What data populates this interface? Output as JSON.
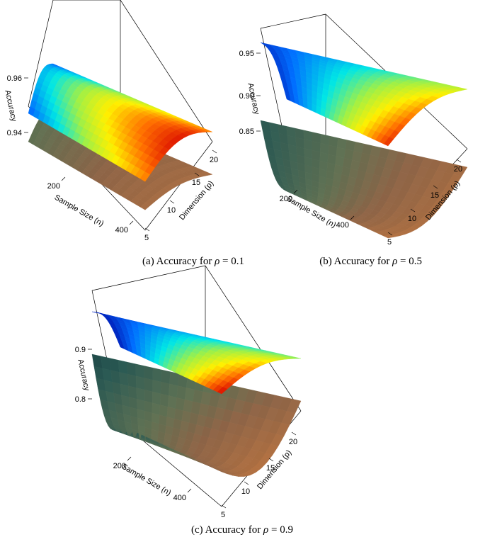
{
  "chart_data": [
    {
      "type": "surface",
      "caption": "(a) Accuracy for ρ = 0.1",
      "caption_parts": {
        "prefix": "(a) Accuracy for ",
        "symbol": "ρ",
        "suffix": " = 0.1"
      },
      "xlabel": "Sample Size (n)",
      "ylabel": "Dimension (p)",
      "zlabel": "Accuracy",
      "x_ticks": [
        "200",
        "400"
      ],
      "y_ticks": [
        "5",
        "10",
        "15",
        "20"
      ],
      "z_ticks": [
        "0.94",
        "0.96"
      ],
      "xlim": [
        50,
        500
      ],
      "ylim": [
        5,
        20
      ],
      "zlim": [
        0.93,
        0.97
      ],
      "series": [
        {
          "surface": "upper",
          "colormap": "jet",
          "z_range": [
            0.925,
            0.97
          ]
        },
        {
          "surface": "lower",
          "colormap": "dark",
          "z_range": [
            0.93,
            0.95
          ]
        }
      ]
    },
    {
      "type": "surface",
      "caption": "(b) Accuracy for ρ = 0.5",
      "caption_parts": {
        "prefix": "(b) Accuracy for ",
        "symbol": "ρ",
        "suffix": " = 0.5"
      },
      "xlabel": "Sample Size (n)",
      "ylabel": "Dimension (p)",
      "zlabel": "Accuracy",
      "x_ticks": [
        "200",
        "400"
      ],
      "y_ticks": [
        "5",
        "10",
        "15",
        "20"
      ],
      "z_ticks": [
        "0.85",
        "0.90",
        "0.95"
      ],
      "xlim": [
        50,
        500
      ],
      "ylim": [
        5,
        20
      ],
      "zlim": [
        0.82,
        0.97
      ],
      "series": [
        {
          "surface": "upper",
          "colormap": "jet",
          "z_range": [
            0.93,
            0.97
          ]
        },
        {
          "surface": "lower",
          "colormap": "dark",
          "z_range": [
            0.82,
            0.87
          ]
        }
      ]
    },
    {
      "type": "surface",
      "caption": "(c) Accuracy for ρ = 0.9",
      "caption_parts": {
        "prefix": "(c) Accuracy for ",
        "symbol": "ρ",
        "suffix": " = 0.9"
      },
      "xlabel": "Sample Size (n)",
      "ylabel": "Dimension (p)",
      "zlabel": "Accuracy",
      "x_ticks": [
        "200",
        "400"
      ],
      "y_ticks": [
        "5",
        "10",
        "15",
        "20"
      ],
      "z_ticks": [
        "0.8",
        "0.9"
      ],
      "xlim": [
        50,
        500
      ],
      "ylim": [
        5,
        20
      ],
      "zlim": [
        0.72,
        0.98
      ],
      "series": [
        {
          "surface": "upper",
          "colormap": "jet",
          "z_range": [
            0.92,
            0.97
          ]
        },
        {
          "surface": "lower",
          "colormap": "dark",
          "z_range": [
            0.75,
            0.87
          ]
        }
      ]
    }
  ]
}
